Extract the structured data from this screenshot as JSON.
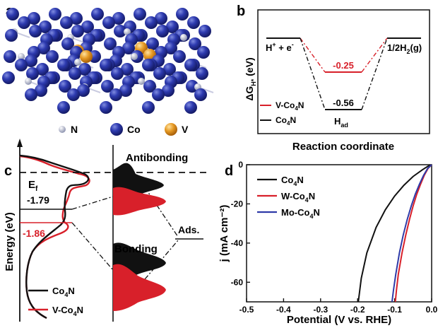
{
  "panels": {
    "a": {
      "letter": "a",
      "legend": [
        {
          "label": "N",
          "color": "#b9bed3"
        },
        {
          "label": "Co",
          "color": "#2a35a6"
        },
        {
          "label": "V",
          "color": "#e0901c"
        }
      ]
    },
    "b": {
      "letter": "b",
      "ylabel": "ΔG",
      "ylabel_sub": "H*",
      "ylabel_unit": " (eV)",
      "xlabel": "Reaction coordinate",
      "left_state": "H",
      "left_state_tail": " + e",
      "right_state": "1/2H",
      "right_state_tail": "(g)",
      "had_label": "H",
      "had_sub": "ad",
      "values": {
        "v_co4n": "-0.25",
        "co4n": "-0.56"
      },
      "legend": [
        {
          "label": "V-Co",
          "sub": "4",
          "tail": "N",
          "color": "#d8202a"
        },
        {
          "label": "Co",
          "sub": "4",
          "tail": "N",
          "color": "#111111"
        }
      ]
    },
    "c": {
      "letter": "c",
      "ylabel": "Energy (eV)",
      "ef_label": "E",
      "ef_sub": "f",
      "level_black": "-1.79",
      "level_red": "-1.86",
      "antibonding": "Antibonding",
      "bonding": "Bonding",
      "ads": "Ads.",
      "legend": [
        {
          "label": "Co",
          "sub": "4",
          "tail": "N",
          "color": "#111111"
        },
        {
          "label": "V-Co",
          "sub": "4",
          "tail": "N",
          "color": "#d8202a"
        }
      ]
    },
    "d": {
      "letter": "d"
    }
  },
  "chart_data": {
    "type": "line",
    "xlabel": "Potential (V vs. RHE)",
    "ylabel": "j (mA cm⁻²)",
    "xlim": [
      -0.5,
      0.0
    ],
    "ylim": [
      -70,
      0
    ],
    "xticks": [
      "-0.5",
      "-0.4",
      "-0.3",
      "-0.2",
      "-0.1",
      "0.0"
    ],
    "yticks": [
      "0",
      "-20",
      "-40",
      "-60"
    ],
    "legend_position": "top-left",
    "series": [
      {
        "name": "Co4N",
        "label": "Co",
        "sub": "4",
        "tail": "N",
        "color": "#111111",
        "x": [
          -0.198,
          -0.19,
          -0.175,
          -0.15,
          -0.125,
          -0.1,
          -0.075,
          -0.05,
          -0.025,
          -0.01,
          0.0
        ],
        "y": [
          -70,
          -58,
          -45,
          -32,
          -23,
          -16,
          -10.5,
          -6,
          -2.6,
          -0.8,
          0
        ]
      },
      {
        "name": "W-Co4N",
        "label": "W-Co",
        "sub": "4",
        "tail": "N",
        "color": "#d8202a",
        "x": [
          -0.098,
          -0.095,
          -0.09,
          -0.08,
          -0.07,
          -0.06,
          -0.05,
          -0.04,
          -0.03,
          -0.02,
          -0.01,
          0.0
        ],
        "y": [
          -70,
          -64,
          -56,
          -45,
          -36,
          -28,
          -21,
          -15,
          -10,
          -5.5,
          -2,
          0
        ]
      },
      {
        "name": "Mo-Co4N",
        "label": "Mo-Co",
        "sub": "4",
        "tail": "N",
        "color": "#2f3aa8",
        "x": [
          -0.107,
          -0.103,
          -0.097,
          -0.087,
          -0.077,
          -0.066,
          -0.055,
          -0.044,
          -0.033,
          -0.022,
          -0.011,
          0.0
        ],
        "y": [
          -70,
          -64,
          -56,
          -45,
          -36,
          -28,
          -21,
          -15,
          -10,
          -5.5,
          -2,
          0
        ]
      }
    ]
  }
}
